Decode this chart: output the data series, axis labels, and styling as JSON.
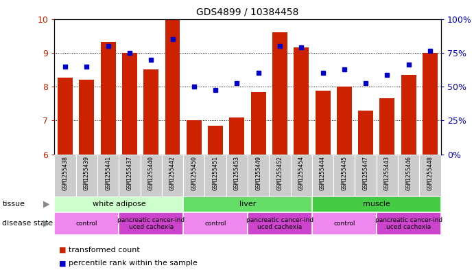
{
  "title": "GDS4899 / 10384458",
  "samples": [
    "GSM1255438",
    "GSM1255439",
    "GSM1255441",
    "GSM1255437",
    "GSM1255440",
    "GSM1255442",
    "GSM1255450",
    "GSM1255451",
    "GSM1255453",
    "GSM1255449",
    "GSM1255452",
    "GSM1255454",
    "GSM1255444",
    "GSM1255445",
    "GSM1255447",
    "GSM1255443",
    "GSM1255446",
    "GSM1255448"
  ],
  "bar_values": [
    8.27,
    8.2,
    9.32,
    9.0,
    8.5,
    10.0,
    7.0,
    6.85,
    7.1,
    7.85,
    9.6,
    9.15,
    7.88,
    8.0,
    7.3,
    7.65,
    8.35,
    9.0
  ],
  "dot_values": [
    8.6,
    8.6,
    9.2,
    9.0,
    8.8,
    9.4,
    8.0,
    7.9,
    8.1,
    8.4,
    9.2,
    9.15,
    8.4,
    8.5,
    8.1,
    8.35,
    8.65,
    9.05
  ],
  "ylim_left": [
    6,
    10
  ],
  "ylim_right": [
    0,
    100
  ],
  "yticks_left": [
    6,
    7,
    8,
    9,
    10
  ],
  "yticks_right": [
    0,
    25,
    50,
    75,
    100
  ],
  "bar_color": "#cc2200",
  "dot_color": "#0000cc",
  "background_color": "#ffffff",
  "xticklabel_bg": "#cccccc",
  "tissue_groups": [
    {
      "label": "white adipose",
      "start": 0,
      "end": 5,
      "color": "#ccffcc"
    },
    {
      "label": "liver",
      "start": 6,
      "end": 11,
      "color": "#66dd66"
    },
    {
      "label": "muscle",
      "start": 12,
      "end": 17,
      "color": "#44cc44"
    }
  ],
  "disease_groups": [
    {
      "label": "control",
      "start": 0,
      "end": 2,
      "color": "#ee88ee"
    },
    {
      "label": "pancreatic cancer-ind\nuced cachexia",
      "start": 3,
      "end": 5,
      "color": "#cc44cc"
    },
    {
      "label": "control",
      "start": 6,
      "end": 8,
      "color": "#ee88ee"
    },
    {
      "label": "pancreatic cancer-ind\nuced cachexia",
      "start": 9,
      "end": 11,
      "color": "#cc44cc"
    },
    {
      "label": "control",
      "start": 12,
      "end": 14,
      "color": "#ee88ee"
    },
    {
      "label": "pancreatic cancer-ind\nuced cachexia",
      "start": 15,
      "end": 17,
      "color": "#cc44cc"
    }
  ],
  "legend_items": [
    {
      "label": "transformed count",
      "color": "#cc2200"
    },
    {
      "label": "percentile rank within the sample",
      "color": "#0000cc"
    }
  ],
  "tissue_label": "tissue",
  "disease_label": "disease state",
  "right_axis_color": "#0000cc",
  "left_axis_color": "#cc2200",
  "arrow_color": "#888888",
  "grid_color": "#000000",
  "grid_lines": [
    7,
    8,
    9
  ]
}
